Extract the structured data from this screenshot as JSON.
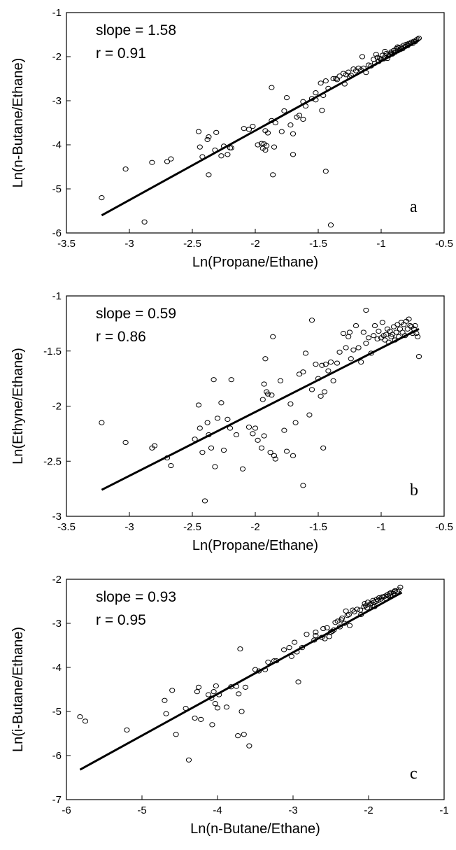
{
  "chart_data": [
    {
      "type": "scatter",
      "panel": "a",
      "annotation_slope": "slope = 1.58",
      "annotation_r": "r = 0.91",
      "xlabel": "Ln(Propane/Ethane)",
      "ylabel": "Ln(n-Butane/Ethane)",
      "xlim": [
        -3.5,
        -0.5
      ],
      "ylim": [
        -6,
        -1
      ],
      "xticks": [
        "-3.5",
        "-3",
        "-2.5",
        "-2",
        "-1.5",
        "-1",
        "-0.5"
      ],
      "yticks": [
        "-1",
        "-2",
        "-3",
        "-4",
        "-5",
        "-6"
      ],
      "fit_line": {
        "x": [
          -3.22,
          -0.7
        ],
        "y": [
          -5.6,
          -1.63
        ]
      },
      "x": [
        -3.22,
        -3.03,
        -2.88,
        -2.82,
        -2.7,
        -2.67,
        -2.45,
        -2.44,
        -2.42,
        -2.38,
        -2.37,
        -2.37,
        -2.32,
        -2.31,
        -2.27,
        -2.25,
        -2.22,
        -2.2,
        -2.19,
        -2.09,
        -2.05,
        -2.02,
        -1.98,
        -1.95,
        -1.94,
        -1.93,
        -1.92,
        -1.92,
        -1.91,
        -1.9,
        -1.87,
        -1.87,
        -1.86,
        -1.85,
        -1.84,
        -1.79,
        -1.77,
        -1.75,
        -1.72,
        -1.7,
        -1.7,
        -1.67,
        -1.65,
        -1.62,
        -1.62,
        -1.6,
        -1.55,
        -1.52,
        -1.52,
        -1.48,
        -1.47,
        -1.46,
        -1.44,
        -1.44,
        -1.42,
        -1.4,
        -1.38,
        -1.35,
        -1.33,
        -1.3,
        -1.28,
        -1.26,
        -1.25,
        -1.22,
        -1.2,
        -1.18,
        -1.16,
        -1.14,
        -1.12,
        -1.1,
        -1.08,
        -1.06,
        -1.05,
        -1.03,
        -1.02,
        -1.0,
        -0.99,
        -0.98,
        -0.97,
        -0.96,
        -0.95,
        -0.94,
        -0.93,
        -0.92,
        -0.91,
        -0.9,
        -0.89,
        -0.88,
        -0.87,
        -0.86,
        -0.85,
        -0.84,
        -0.83,
        -0.82,
        -0.81,
        -0.8,
        -0.79,
        -0.78,
        -0.77,
        -0.76,
        -0.75,
        -0.74,
        -0.73,
        -0.72,
        -0.71,
        -0.7,
        -1.36,
        -1.29,
        -1.15,
        -0.92,
        -1.01,
        -1.04,
        -0.87,
        -1.24,
        -0.97
      ],
      "y": [
        -5.2,
        -4.55,
        -5.75,
        -4.4,
        -4.38,
        -4.32,
        -3.7,
        -4.05,
        -4.27,
        -3.88,
        -3.82,
        -4.68,
        -4.12,
        -3.72,
        -4.25,
        -4.03,
        -4.22,
        -4.07,
        -4.07,
        -3.63,
        -3.65,
        -3.58,
        -4.0,
        -3.97,
        -4.08,
        -3.98,
        -4.12,
        -3.68,
        -4.02,
        -3.73,
        -3.45,
        -2.7,
        -4.68,
        -4.05,
        -3.5,
        -3.7,
        -3.23,
        -2.93,
        -3.55,
        -4.22,
        -3.75,
        -3.37,
        -3.33,
        -3.42,
        -3.02,
        -3.12,
        -2.95,
        -2.82,
        -2.98,
        -2.6,
        -3.22,
        -2.88,
        -4.6,
        -2.55,
        -2.72,
        -5.82,
        -2.5,
        -2.52,
        -2.44,
        -2.38,
        -2.41,
        -2.35,
        -2.46,
        -2.28,
        -2.32,
        -2.26,
        -2.3,
        -2.26,
        -2.36,
        -2.19,
        -2.21,
        -2.06,
        -2.15,
        -2.02,
        -2.11,
        -2.06,
        -1.97,
        -2.05,
        -2.01,
        -1.93,
        -2.04,
        -1.98,
        -1.95,
        -1.89,
        -1.94,
        -1.86,
        -1.9,
        -1.82,
        -1.87,
        -1.8,
        -1.84,
        -1.78,
        -1.82,
        -1.74,
        -1.77,
        -1.72,
        -1.75,
        -1.7,
        -1.71,
        -1.67,
        -1.7,
        -1.65,
        -1.66,
        -1.62,
        -1.6,
        -1.58,
        -2.5,
        -2.62,
        -2.0,
        -1.92,
        -2.04,
        -1.95,
        -1.78,
        -2.42,
        -1.88
      ]
    },
    {
      "type": "scatter",
      "panel": "b",
      "annotation_slope": "slope = 0.59",
      "annotation_r": "r = 0.86",
      "xlabel": "Ln(Propane/Ethane)",
      "ylabel": "Ln(Ethyne/Ethane)",
      "xlim": [
        -3.5,
        -0.5
      ],
      "ylim": [
        -3,
        -1
      ],
      "xticks": [
        "-3.5",
        "-3",
        "-2.5",
        "-2",
        "-1.5",
        "-1",
        "-0.5"
      ],
      "yticks": [
        "-1",
        "-1.5",
        "-2",
        "-2.5",
        "-3"
      ],
      "fit_line": {
        "x": [
          -3.22,
          -0.7
        ],
        "y": [
          -2.76,
          -1.3
        ]
      },
      "x": [
        -3.22,
        -3.03,
        -2.82,
        -2.8,
        -2.7,
        -2.67,
        -2.45,
        -2.44,
        -2.42,
        -2.38,
        -2.37,
        -2.33,
        -2.32,
        -2.3,
        -2.27,
        -2.25,
        -2.22,
        -2.2,
        -2.19,
        -2.15,
        -2.1,
        -2.05,
        -2.02,
        -2.0,
        -1.98,
        -1.95,
        -1.94,
        -1.93,
        -1.92,
        -1.91,
        -1.9,
        -1.88,
        -1.87,
        -1.86,
        -1.84,
        -1.8,
        -1.77,
        -1.75,
        -1.72,
        -1.7,
        -1.68,
        -1.65,
        -1.62,
        -1.6,
        -1.57,
        -1.55,
        -1.52,
        -1.5,
        -1.48,
        -1.47,
        -1.46,
        -1.45,
        -1.44,
        -1.42,
        -1.4,
        -1.38,
        -1.35,
        -1.33,
        -1.3,
        -1.28,
        -1.26,
        -1.25,
        -1.22,
        -1.2,
        -1.18,
        -1.16,
        -1.14,
        -1.12,
        -1.1,
        -1.08,
        -1.06,
        -1.05,
        -1.03,
        -1.02,
        -1.0,
        -0.99,
        -0.98,
        -0.97,
        -0.96,
        -0.95,
        -0.94,
        -0.93,
        -0.92,
        -0.91,
        -0.9,
        -0.89,
        -0.88,
        -0.87,
        -0.86,
        -0.85,
        -0.84,
        -0.83,
        -0.82,
        -0.81,
        -0.8,
        -0.79,
        -0.78,
        -0.77,
        -0.76,
        -0.75,
        -0.74,
        -0.73,
        -0.72,
        -0.71,
        -0.7,
        -2.4,
        -1.85,
        -1.62,
        -2.48,
        -1.93,
        -1.55,
        -1.24,
        -1.12,
        -2.35
      ],
      "y": [
        -2.15,
        -2.33,
        -2.38,
        -2.36,
        -2.47,
        -2.54,
        -1.99,
        -2.2,
        -2.42,
        -2.15,
        -2.26,
        -1.76,
        -2.55,
        -2.11,
        -1.97,
        -2.4,
        -2.12,
        -2.2,
        -1.76,
        -2.26,
        -2.57,
        -2.19,
        -2.25,
        -2.2,
        -2.31,
        -2.38,
        -1.94,
        -2.27,
        -1.57,
        -1.87,
        -1.89,
        -2.42,
        -1.9,
        -1.37,
        -2.48,
        -1.77,
        -2.22,
        -2.41,
        -1.98,
        -2.45,
        -2.15,
        -1.71,
        -1.69,
        -1.52,
        -2.08,
        -1.85,
        -1.62,
        -1.75,
        -1.91,
        -1.63,
        -2.38,
        -1.87,
        -1.62,
        -1.68,
        -1.6,
        -1.77,
        -1.61,
        -1.51,
        -1.34,
        -1.47,
        -1.37,
        -1.33,
        -1.49,
        -1.27,
        -1.47,
        -1.6,
        -1.33,
        -1.43,
        -1.38,
        -1.52,
        -1.36,
        -1.27,
        -1.39,
        -1.32,
        -1.38,
        -1.24,
        -1.36,
        -1.4,
        -1.35,
        -1.3,
        -1.42,
        -1.32,
        -1.37,
        -1.35,
        -1.28,
        -1.4,
        -1.33,
        -1.26,
        -1.37,
        -1.3,
        -1.24,
        -1.33,
        -1.26,
        -1.36,
        -1.23,
        -1.3,
        -1.21,
        -1.27,
        -1.28,
        -1.34,
        -1.3,
        -1.27,
        -1.34,
        -1.37,
        -1.55,
        -2.86,
        -2.45,
        -2.72,
        -2.3,
        -1.8,
        -1.22,
        -1.57,
        -1.13,
        -2.38
      ]
    },
    {
      "type": "scatter",
      "panel": "c",
      "annotation_slope": "slope = 0.93",
      "annotation_r": "r = 0.95",
      "xlabel": "Ln(n-Butane/Ethane)",
      "ylabel": "Ln(i-Butane/Ethane)",
      "xlim": [
        -6,
        -1
      ],
      "ylim": [
        -7,
        -2
      ],
      "xticks": [
        "-6",
        "-5",
        "-4",
        "-3",
        "-2",
        "-1"
      ],
      "yticks": [
        "-2",
        "-3",
        "-4",
        "-5",
        "-6",
        "-7"
      ],
      "fit_line": {
        "x": [
          -5.82,
          -1.56
        ],
        "y": [
          -6.32,
          -2.3
        ]
      },
      "x": [
        -5.82,
        -5.75,
        -5.2,
        -4.7,
        -4.68,
        -4.6,
        -4.55,
        -4.42,
        -4.38,
        -4.3,
        -4.27,
        -4.25,
        -4.22,
        -4.12,
        -4.08,
        -4.07,
        -4.05,
        -4.03,
        -4.02,
        -4.0,
        -3.98,
        -3.88,
        -3.82,
        -3.75,
        -3.73,
        -3.72,
        -3.7,
        -3.68,
        -3.65,
        -3.63,
        -3.58,
        -3.5,
        -3.45,
        -3.37,
        -3.33,
        -3.25,
        -3.22,
        -3.12,
        -3.02,
        -2.98,
        -2.95,
        -2.93,
        -2.88,
        -2.82,
        -2.72,
        -2.7,
        -2.62,
        -2.6,
        -2.55,
        -2.52,
        -2.5,
        -2.46,
        -2.44,
        -2.41,
        -2.38,
        -2.36,
        -2.35,
        -2.32,
        -2.3,
        -2.28,
        -2.26,
        -2.21,
        -2.19,
        -2.15,
        -2.11,
        -2.06,
        -2.05,
        -2.04,
        -2.02,
        -2.01,
        -1.98,
        -1.97,
        -1.95,
        -1.94,
        -1.93,
        -1.9,
        -1.89,
        -1.87,
        -1.86,
        -1.84,
        -1.82,
        -1.8,
        -1.78,
        -1.77,
        -1.75,
        -1.74,
        -1.72,
        -1.71,
        -1.7,
        -1.67,
        -1.66,
        -1.65,
        -1.62,
        -1.6,
        -1.58,
        -2.7,
        -2.1,
        -2.25,
        -1.92,
        -2.48,
        -3.05,
        -2.58
      ],
      "y": [
        -5.12,
        -5.22,
        -5.42,
        -4.75,
        -5.05,
        -4.52,
        -5.52,
        -4.93,
        -6.1,
        -5.15,
        -4.55,
        -4.45,
        -5.18,
        -4.62,
        -4.7,
        -5.3,
        -4.55,
        -4.82,
        -4.42,
        -4.92,
        -4.62,
        -4.9,
        -4.44,
        -4.43,
        -5.55,
        -4.6,
        -3.58,
        -5.0,
        -5.52,
        -4.45,
        -5.78,
        -4.05,
        -4.08,
        -4.05,
        -3.88,
        -3.85,
        -3.85,
        -3.6,
        -3.75,
        -3.43,
        -3.65,
        -4.33,
        -3.55,
        -3.25,
        -3.38,
        -3.28,
        -3.32,
        -3.12,
        -3.1,
        -3.3,
        -3.2,
        -3.15,
        -2.98,
        -2.95,
        -3.08,
        -2.92,
        -2.88,
        -3.0,
        -2.72,
        -2.82,
        -2.8,
        -2.7,
        -2.74,
        -2.68,
        -2.7,
        -2.62,
        -2.55,
        -2.6,
        -2.65,
        -2.52,
        -2.58,
        -2.55,
        -2.6,
        -2.48,
        -2.52,
        -2.5,
        -2.45,
        -2.48,
        -2.42,
        -2.45,
        -2.4,
        -2.4,
        -2.38,
        -2.44,
        -2.35,
        -2.38,
        -2.32,
        -2.36,
        -2.3,
        -2.32,
        -2.28,
        -2.26,
        -2.28,
        -2.24,
        -2.18,
        -3.2,
        -2.8,
        -3.05,
        -2.62,
        -3.18,
        -3.55,
        -3.35
      ]
    }
  ]
}
